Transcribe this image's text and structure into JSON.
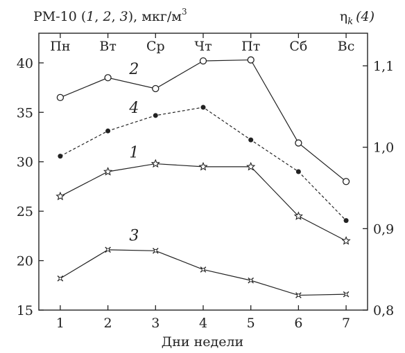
{
  "chart_data": {
    "type": "line",
    "x": [
      1,
      2,
      3,
      4,
      5,
      6,
      7
    ],
    "day_labels": [
      "Пн",
      "Вт",
      "Ср",
      "Чт",
      "Пт",
      "Сб",
      "Вс"
    ],
    "xlabel": "Дни недели",
    "ylabel_left": {
      "text": "PM-10 (",
      "series": [
        "1",
        "2",
        "3"
      ],
      "unit": "), мкг/м",
      "sup": "3"
    },
    "ylabel_right": {
      "base": "η",
      "sub": "k",
      "series": "(4)"
    },
    "ylim_left": [
      15,
      43
    ],
    "ylim_right": [
      0.8,
      1.14
    ],
    "yticks_left": [
      15,
      20,
      25,
      30,
      35,
      40
    ],
    "yticks_right": [
      0.8,
      0.9,
      1.0,
      1.1
    ],
    "yticks_right_labels": [
      "0,8",
      "0,9",
      "1,0",
      "1,1"
    ],
    "xticks": [
      1,
      2,
      3,
      4,
      5,
      6,
      7
    ],
    "grid": false,
    "series": [
      {
        "name": "2",
        "axis": "left",
        "marker": "open-circle",
        "dash": "solid",
        "values": [
          36.5,
          38.5,
          37.4,
          40.2,
          40.3,
          31.9,
          28.0
        ]
      },
      {
        "name": "4",
        "axis": "right",
        "marker": "filled-circle",
        "dash": "dashed",
        "values": [
          0.989,
          1.02,
          1.039,
          1.049,
          1.009,
          0.97,
          0.91
        ]
      },
      {
        "name": "1",
        "axis": "left",
        "marker": "star",
        "dash": "solid",
        "values": [
          26.5,
          29.0,
          29.8,
          29.5,
          29.5,
          24.5,
          22.0
        ]
      },
      {
        "name": "3",
        "axis": "left",
        "marker": "cross",
        "dash": "solid",
        "values": [
          18.2,
          21.1,
          21.0,
          19.1,
          18.0,
          16.5,
          16.6
        ]
      }
    ]
  }
}
